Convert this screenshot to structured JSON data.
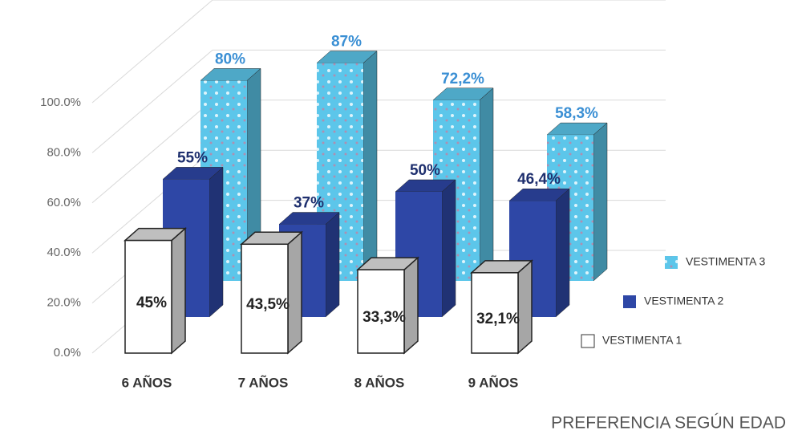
{
  "chart_data": {
    "type": "bar3d",
    "title": "PREFERENCIA SEGÚN EDAD",
    "categories": [
      "6 AÑOS",
      "7 AÑOS",
      "8 AÑOS",
      "9 AÑOS"
    ],
    "series": [
      {
        "name": "VESTIMENTA 1",
        "color": "#ffffff",
        "values": [
          45,
          43.5,
          33.3,
          32.1
        ],
        "value_labels": [
          "45%",
          "43,5%",
          "33,3%",
          "32,1%"
        ]
      },
      {
        "name": "VESTIMENTA 2",
        "color": "#2e47a6",
        "values": [
          55,
          37,
          50,
          46.4
        ],
        "value_labels": [
          "55%",
          "37%",
          "50%",
          "46,4%"
        ]
      },
      {
        "name": "VESTIMENTA 3",
        "color": "#5cc6ea",
        "values": [
          80,
          87,
          72.2,
          58.3
        ],
        "value_labels": [
          "80%",
          "87%",
          "72,2%",
          "58,3%"
        ]
      }
    ],
    "ylim": [
      0,
      100
    ],
    "yticks": [
      {
        "value": 0,
        "label": "0.0%"
      },
      {
        "value": 20,
        "label": "20.0%"
      },
      {
        "value": 40,
        "label": "40.0%"
      },
      {
        "value": 60,
        "label": "60.0%"
      },
      {
        "value": 80,
        "label": "80.0%"
      },
      {
        "value": 100,
        "label": "100.0%"
      }
    ],
    "grid": true,
    "legend": "bottom-right"
  }
}
